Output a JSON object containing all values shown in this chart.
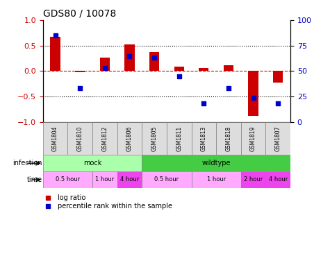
{
  "title": "GDS80 / 10078",
  "samples": [
    "GSM1804",
    "GSM1810",
    "GSM1812",
    "GSM1806",
    "GSM1805",
    "GSM1811",
    "GSM1813",
    "GSM1818",
    "GSM1819",
    "GSM1807"
  ],
  "log_ratio": [
    0.68,
    -0.02,
    0.27,
    0.52,
    0.38,
    0.09,
    0.06,
    0.12,
    -0.88,
    -0.22
  ],
  "percentile": [
    85,
    33,
    53,
    65,
    63,
    45,
    18,
    33,
    24,
    18
  ],
  "bar_color": "#cc0000",
  "dot_color": "#0000cc",
  "ylim": [
    -1,
    1
  ],
  "y_ticks_left": [
    -1,
    -0.5,
    0,
    0.5,
    1
  ],
  "y_ticks_right": [
    0,
    25,
    50,
    75,
    100
  ],
  "hline_color": "#cc0000",
  "dotline_color": "black",
  "infection_groups": [
    {
      "label": "mock",
      "start": 0,
      "end": 4,
      "color": "#aaffaa"
    },
    {
      "label": "wildtype",
      "start": 4,
      "end": 10,
      "color": "#44cc44"
    }
  ],
  "time_groups": [
    {
      "label": "0.5 hour",
      "start": 0,
      "end": 2,
      "color": "#ffaaff"
    },
    {
      "label": "1 hour",
      "start": 2,
      "end": 3,
      "color": "#ffaaff"
    },
    {
      "label": "4 hour",
      "start": 3,
      "end": 4,
      "color": "#ee44ee"
    },
    {
      "label": "0.5 hour",
      "start": 4,
      "end": 6,
      "color": "#ffaaff"
    },
    {
      "label": "1 hour",
      "start": 6,
      "end": 8,
      "color": "#ffaaff"
    },
    {
      "label": "2 hour",
      "start": 8,
      "end": 9,
      "color": "#ee44ee"
    },
    {
      "label": "4 hour",
      "start": 9,
      "end": 10,
      "color": "#ee44ee"
    }
  ],
  "legend_items": [
    {
      "label": "log ratio",
      "color": "#cc0000",
      "marker": "s"
    },
    {
      "label": "percentile rank within the sample",
      "color": "#0000cc",
      "marker": "s"
    }
  ]
}
